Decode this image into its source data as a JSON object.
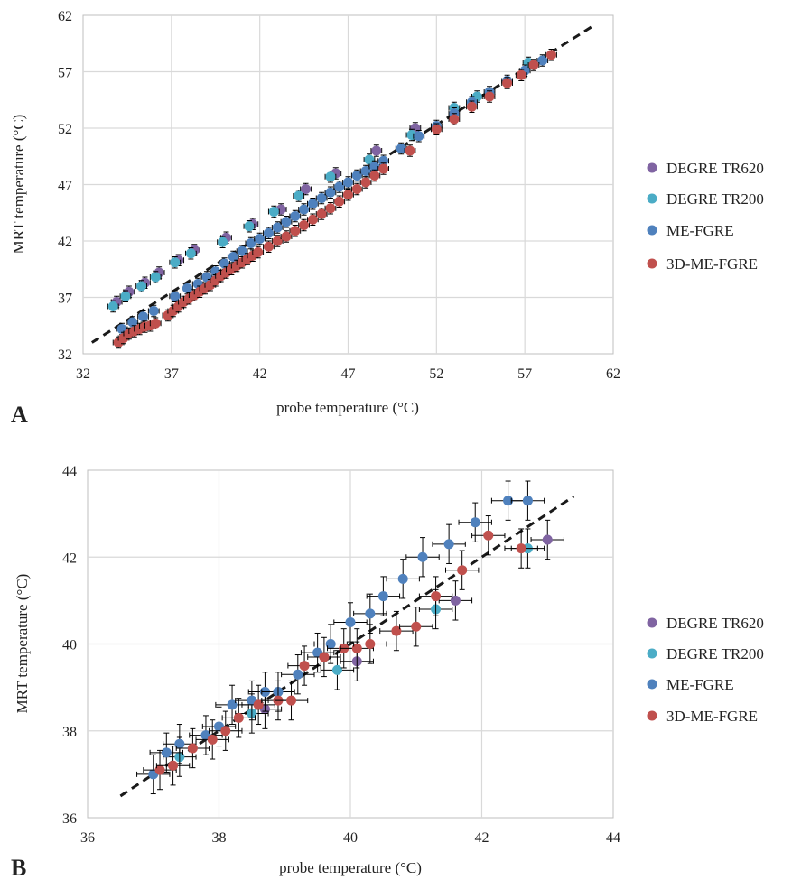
{
  "legend": {
    "items": [
      "DEGRE TR620",
      "DEGRE TR200",
      "ME-FGRE",
      "3D-ME-FGRE"
    ],
    "colors": [
      "#8064a2",
      "#4bacc6",
      "#4f81bd",
      "#c0504d"
    ]
  },
  "chart_data": [
    {
      "type": "scatter",
      "panel_label": "A",
      "xlabel": "probe temperature (°C)",
      "ylabel": "MRT temperature (°C)",
      "xlim": [
        32,
        62
      ],
      "ylim": [
        32,
        62
      ],
      "x_ticks": [
        "32",
        "37",
        "42",
        "47",
        "52",
        "57",
        "62"
      ],
      "y_ticks": [
        "32",
        "37",
        "42",
        "47",
        "52",
        "57",
        "62"
      ],
      "grid": true,
      "legend_position": "right",
      "reference_line": {
        "style": "dashed",
        "from": [
          32.5,
          33
        ],
        "to": [
          60.8,
          61
        ]
      },
      "series": [
        {
          "name": "DEGRE TR620",
          "x": [
            33.9,
            34.6,
            35.5,
            36.3,
            37.4,
            38.3,
            40.1,
            41.6,
            43.2,
            44.6,
            46.3,
            48.6,
            50.8
          ],
          "y": [
            36.6,
            37.5,
            38.3,
            39.2,
            40.3,
            41.2,
            42.3,
            43.5,
            44.8,
            46.6,
            48.0,
            50.0,
            52.0
          ]
        },
        {
          "name": "DEGRE TR200",
          "x": [
            33.7,
            34.4,
            35.3,
            36.1,
            37.2,
            38.1,
            39.9,
            41.4,
            42.8,
            44.2,
            46.0,
            48.2,
            50.6,
            53.0,
            54.3,
            57.2
          ],
          "y": [
            36.2,
            37.1,
            38.0,
            38.8,
            40.1,
            40.9,
            41.9,
            43.3,
            44.6,
            46.0,
            47.7,
            49.2,
            51.4,
            53.8,
            54.8,
            57.8
          ]
        },
        {
          "name": "ME-FGRE",
          "x": [
            34.2,
            34.8,
            35.4,
            36.0,
            37.2,
            37.9,
            38.5,
            39.0,
            39.5,
            40.0,
            40.5,
            41.0,
            41.5,
            42.0,
            42.5,
            43.0,
            43.5,
            44.0,
            44.5,
            45.0,
            45.5,
            46.0,
            46.5,
            47.0,
            47.5,
            48.0,
            48.5,
            49.0,
            50.0,
            51.0,
            52.0,
            53.0,
            54.0,
            55.0,
            56.0,
            57.0,
            58.0
          ],
          "y": [
            34.2,
            34.8,
            35.3,
            35.8,
            37.1,
            37.8,
            38.2,
            38.8,
            39.3,
            40.0,
            40.6,
            41.1,
            41.8,
            42.2,
            42.7,
            43.2,
            43.7,
            44.2,
            44.8,
            45.3,
            45.8,
            46.3,
            46.8,
            47.2,
            47.8,
            48.2,
            48.6,
            49.1,
            50.2,
            51.3,
            52.2,
            53.3,
            54.3,
            55.2,
            56.2,
            57.1,
            58.0
          ]
        },
        {
          "name": "3D-ME-FGRE",
          "x": [
            34.0,
            34.3,
            34.6,
            34.9,
            35.2,
            35.5,
            35.8,
            36.1,
            36.8,
            37.1,
            37.4,
            37.7,
            38.0,
            38.3,
            38.6,
            38.9,
            39.2,
            39.5,
            39.8,
            40.1,
            40.4,
            40.7,
            41.0,
            41.3,
            41.6,
            41.9,
            42.5,
            43.0,
            43.5,
            44.0,
            44.5,
            45.0,
            45.5,
            46.0,
            46.5,
            47.0,
            47.5,
            48.0,
            48.5,
            49.0,
            50.5,
            52.0,
            53.0,
            54.0,
            55.0,
            56.0,
            56.8,
            57.5,
            58.5
          ],
          "y": [
            33.0,
            33.4,
            33.8,
            34.0,
            34.2,
            34.4,
            34.5,
            34.7,
            35.4,
            35.8,
            36.2,
            36.6,
            36.9,
            37.2,
            37.5,
            37.8,
            38.1,
            38.5,
            38.9,
            39.2,
            39.5,
            39.8,
            40.1,
            40.4,
            40.7,
            41.0,
            41.5,
            42.0,
            42.4,
            42.9,
            43.4,
            43.9,
            44.4,
            44.9,
            45.5,
            46.1,
            46.6,
            47.2,
            47.8,
            48.4,
            50.0,
            51.9,
            52.8,
            53.9,
            54.8,
            56.0,
            56.7,
            57.6,
            58.5
          ]
        }
      ]
    },
    {
      "type": "scatter",
      "panel_label": "B",
      "xlabel": "probe temperature (°C)",
      "ylabel": "MRT temperature (°C)",
      "xlim": [
        36,
        44
      ],
      "ylim": [
        36,
        44
      ],
      "x_ticks": [
        "36",
        "38",
        "40",
        "42",
        "44"
      ],
      "y_ticks": [
        "36",
        "38",
        "40",
        "42",
        "44"
      ],
      "grid": true,
      "legend_position": "right",
      "reference_line": {
        "style": "dashed",
        "from": [
          36.5,
          36.5
        ],
        "to": [
          43.4,
          43.4
        ]
      },
      "series": [
        {
          "name": "DEGRE TR620",
          "x": [
            38.7,
            40.1,
            41.6,
            43.0
          ],
          "y": [
            38.5,
            39.6,
            41.0,
            42.4
          ]
        },
        {
          "name": "DEGRE TR200",
          "x": [
            37.4,
            38.5,
            39.8,
            41.3,
            42.7
          ],
          "y": [
            37.4,
            38.4,
            39.4,
            40.8,
            42.2
          ]
        },
        {
          "name": "ME-FGRE",
          "x": [
            37.0,
            37.2,
            37.4,
            37.8,
            38.0,
            38.2,
            38.5,
            38.7,
            38.9,
            39.2,
            39.5,
            39.7,
            40.0,
            40.3,
            40.5,
            40.8,
            41.1,
            41.5,
            41.9,
            42.4,
            42.7
          ],
          "y": [
            37.0,
            37.5,
            37.7,
            37.9,
            38.1,
            38.6,
            38.7,
            38.9,
            38.9,
            39.3,
            39.8,
            40.0,
            40.5,
            40.7,
            41.1,
            41.5,
            42.0,
            42.3,
            42.8,
            43.3,
            43.3
          ]
        },
        {
          "name": "3D-ME-FGRE",
          "x": [
            37.1,
            37.3,
            37.6,
            37.9,
            38.1,
            38.3,
            38.6,
            38.9,
            39.1,
            39.3,
            39.6,
            39.9,
            40.1,
            40.3,
            40.7,
            41.0,
            41.3,
            41.7,
            42.1,
            42.6
          ],
          "y": [
            37.1,
            37.2,
            37.6,
            37.8,
            38.0,
            38.3,
            38.6,
            38.7,
            38.7,
            39.5,
            39.7,
            39.9,
            39.9,
            40.0,
            40.3,
            40.4,
            41.1,
            41.7,
            42.5,
            42.2
          ]
        }
      ]
    }
  ]
}
